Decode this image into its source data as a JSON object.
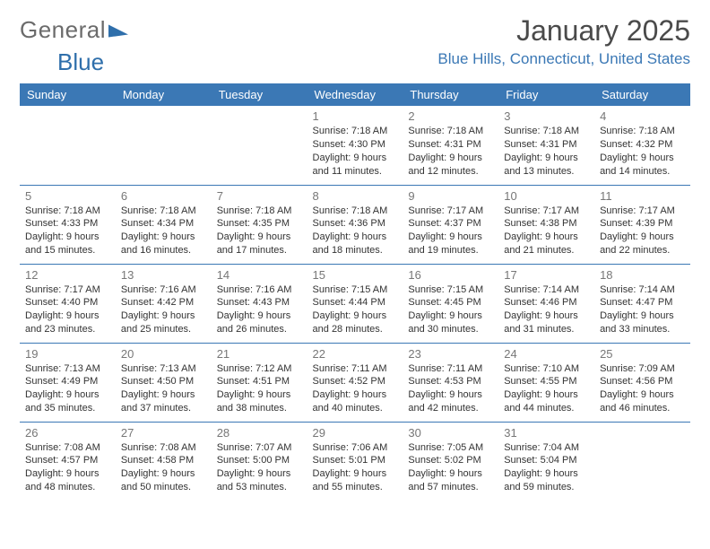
{
  "brand": {
    "part1": "General",
    "part2": "Blue"
  },
  "title": "January 2025",
  "location": "Blue Hills, Connecticut, United States",
  "colors": {
    "header_bg": "#3b78b5",
    "header_text": "#ffffff",
    "accent": "#3b78b5",
    "body_text": "#333333",
    "daynum": "#777777",
    "logo_gray": "#6b6b6b",
    "logo_blue": "#2f6fab",
    "page_bg": "#ffffff"
  },
  "day_headers": [
    "Sunday",
    "Monday",
    "Tuesday",
    "Wednesday",
    "Thursday",
    "Friday",
    "Saturday"
  ],
  "weeks": [
    [
      {
        "n": "",
        "sunrise": "",
        "sunset": "",
        "daylight": ""
      },
      {
        "n": "",
        "sunrise": "",
        "sunset": "",
        "daylight": ""
      },
      {
        "n": "",
        "sunrise": "",
        "sunset": "",
        "daylight": ""
      },
      {
        "n": "1",
        "sunrise": "7:18 AM",
        "sunset": "4:30 PM",
        "daylight": "9 hours and 11 minutes."
      },
      {
        "n": "2",
        "sunrise": "7:18 AM",
        "sunset": "4:31 PM",
        "daylight": "9 hours and 12 minutes."
      },
      {
        "n": "3",
        "sunrise": "7:18 AM",
        "sunset": "4:31 PM",
        "daylight": "9 hours and 13 minutes."
      },
      {
        "n": "4",
        "sunrise": "7:18 AM",
        "sunset": "4:32 PM",
        "daylight": "9 hours and 14 minutes."
      }
    ],
    [
      {
        "n": "5",
        "sunrise": "7:18 AM",
        "sunset": "4:33 PM",
        "daylight": "9 hours and 15 minutes."
      },
      {
        "n": "6",
        "sunrise": "7:18 AM",
        "sunset": "4:34 PM",
        "daylight": "9 hours and 16 minutes."
      },
      {
        "n": "7",
        "sunrise": "7:18 AM",
        "sunset": "4:35 PM",
        "daylight": "9 hours and 17 minutes."
      },
      {
        "n": "8",
        "sunrise": "7:18 AM",
        "sunset": "4:36 PM",
        "daylight": "9 hours and 18 minutes."
      },
      {
        "n": "9",
        "sunrise": "7:17 AM",
        "sunset": "4:37 PM",
        "daylight": "9 hours and 19 minutes."
      },
      {
        "n": "10",
        "sunrise": "7:17 AM",
        "sunset": "4:38 PM",
        "daylight": "9 hours and 21 minutes."
      },
      {
        "n": "11",
        "sunrise": "7:17 AM",
        "sunset": "4:39 PM",
        "daylight": "9 hours and 22 minutes."
      }
    ],
    [
      {
        "n": "12",
        "sunrise": "7:17 AM",
        "sunset": "4:40 PM",
        "daylight": "9 hours and 23 minutes."
      },
      {
        "n": "13",
        "sunrise": "7:16 AM",
        "sunset": "4:42 PM",
        "daylight": "9 hours and 25 minutes."
      },
      {
        "n": "14",
        "sunrise": "7:16 AM",
        "sunset": "4:43 PM",
        "daylight": "9 hours and 26 minutes."
      },
      {
        "n": "15",
        "sunrise": "7:15 AM",
        "sunset": "4:44 PM",
        "daylight": "9 hours and 28 minutes."
      },
      {
        "n": "16",
        "sunrise": "7:15 AM",
        "sunset": "4:45 PM",
        "daylight": "9 hours and 30 minutes."
      },
      {
        "n": "17",
        "sunrise": "7:14 AM",
        "sunset": "4:46 PM",
        "daylight": "9 hours and 31 minutes."
      },
      {
        "n": "18",
        "sunrise": "7:14 AM",
        "sunset": "4:47 PM",
        "daylight": "9 hours and 33 minutes."
      }
    ],
    [
      {
        "n": "19",
        "sunrise": "7:13 AM",
        "sunset": "4:49 PM",
        "daylight": "9 hours and 35 minutes."
      },
      {
        "n": "20",
        "sunrise": "7:13 AM",
        "sunset": "4:50 PM",
        "daylight": "9 hours and 37 minutes."
      },
      {
        "n": "21",
        "sunrise": "7:12 AM",
        "sunset": "4:51 PM",
        "daylight": "9 hours and 38 minutes."
      },
      {
        "n": "22",
        "sunrise": "7:11 AM",
        "sunset": "4:52 PM",
        "daylight": "9 hours and 40 minutes."
      },
      {
        "n": "23",
        "sunrise": "7:11 AM",
        "sunset": "4:53 PM",
        "daylight": "9 hours and 42 minutes."
      },
      {
        "n": "24",
        "sunrise": "7:10 AM",
        "sunset": "4:55 PM",
        "daylight": "9 hours and 44 minutes."
      },
      {
        "n": "25",
        "sunrise": "7:09 AM",
        "sunset": "4:56 PM",
        "daylight": "9 hours and 46 minutes."
      }
    ],
    [
      {
        "n": "26",
        "sunrise": "7:08 AM",
        "sunset": "4:57 PM",
        "daylight": "9 hours and 48 minutes."
      },
      {
        "n": "27",
        "sunrise": "7:08 AM",
        "sunset": "4:58 PM",
        "daylight": "9 hours and 50 minutes."
      },
      {
        "n": "28",
        "sunrise": "7:07 AM",
        "sunset": "5:00 PM",
        "daylight": "9 hours and 53 minutes."
      },
      {
        "n": "29",
        "sunrise": "7:06 AM",
        "sunset": "5:01 PM",
        "daylight": "9 hours and 55 minutes."
      },
      {
        "n": "30",
        "sunrise": "7:05 AM",
        "sunset": "5:02 PM",
        "daylight": "9 hours and 57 minutes."
      },
      {
        "n": "31",
        "sunrise": "7:04 AM",
        "sunset": "5:04 PM",
        "daylight": "9 hours and 59 minutes."
      },
      {
        "n": "",
        "sunrise": "",
        "sunset": "",
        "daylight": ""
      }
    ]
  ],
  "labels": {
    "sunrise": "Sunrise: ",
    "sunset": "Sunset: ",
    "daylight": "Daylight: "
  }
}
